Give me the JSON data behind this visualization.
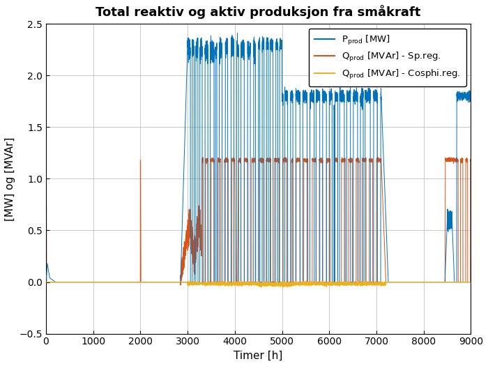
{
  "title": "Total reaktiv og aktiv produksjon fra småkraft",
  "xlabel": "Timer [h]",
  "ylabel": "[MW] og [MVAr]",
  "xlim": [
    0,
    9000
  ],
  "ylim": [
    -0.5,
    2.5
  ],
  "yticks": [
    -0.5,
    0.0,
    0.5,
    1.0,
    1.5,
    2.0,
    2.5
  ],
  "xticks": [
    0,
    1000,
    2000,
    3000,
    4000,
    5000,
    6000,
    7000,
    8000,
    9000
  ],
  "color_blue": "#0072BD",
  "color_orange": "#D95319",
  "color_yellow": "#EDB120",
  "title_fontsize": 13,
  "label_fontsize": 11,
  "tick_fontsize": 10,
  "legend_fontsize": 9.5
}
